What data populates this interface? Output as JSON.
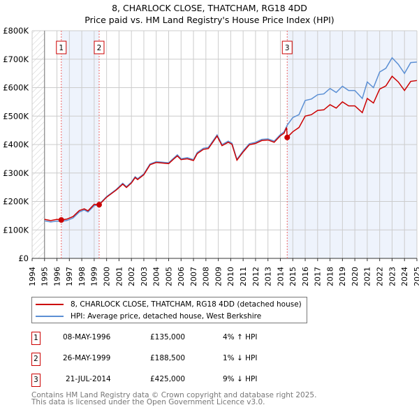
{
  "chart_data": {
    "type": "line",
    "title": "8, CHARLOCK CLOSE, THATCHAM, RG18 4DD",
    "subtitle": "Price paid vs. HM Land Registry's House Price Index (HPI)",
    "xlim": [
      1994,
      2025
    ],
    "ylim": [
      0,
      800000
    ],
    "x_ticks": [
      "1994",
      "1995",
      "1996",
      "1997",
      "1998",
      "1999",
      "2000",
      "2001",
      "2002",
      "2003",
      "2004",
      "2005",
      "2006",
      "2007",
      "2008",
      "2009",
      "2010",
      "2011",
      "2012",
      "2013",
      "2014",
      "2015",
      "2016",
      "2017",
      "2018",
      "2019",
      "2020",
      "2021",
      "2022",
      "2023",
      "2024",
      "2025"
    ],
    "y_ticks": [
      {
        "v": 0,
        "label": "£0"
      },
      {
        "v": 100000,
        "label": "£100K"
      },
      {
        "v": 200000,
        "label": "£200K"
      },
      {
        "v": 300000,
        "label": "£300K"
      },
      {
        "v": 400000,
        "label": "£400K"
      },
      {
        "v": 500000,
        "label": "£500K"
      },
      {
        "v": 600000,
        "label": "£600K"
      },
      {
        "v": 700000,
        "label": "£700K"
      },
      {
        "v": 800000,
        "label": "£800K"
      }
    ],
    "grid": true,
    "series": [
      {
        "name": "8, CHARLOCK CLOSE, THATCHAM, RG18 4DD (detached house)",
        "color": "#cc0000",
        "points": [
          [
            1995,
            137
          ],
          [
            1995.5,
            133
          ],
          [
            1996,
            137
          ],
          [
            1996.35,
            135
          ],
          [
            1996.8,
            138
          ],
          [
            1997.3,
            147
          ],
          [
            1997.8,
            168
          ],
          [
            1998.2,
            174
          ],
          [
            1998.5,
            167
          ],
          [
            1999,
            190
          ],
          [
            1999.4,
            188.5
          ],
          [
            2000,
            215
          ],
          [
            2000.8,
            241
          ],
          [
            2001.3,
            261
          ],
          [
            2001.6,
            249
          ],
          [
            2002,
            265
          ],
          [
            2002.3,
            284
          ],
          [
            2002.5,
            277
          ],
          [
            2003,
            294
          ],
          [
            2003.5,
            329
          ],
          [
            2004,
            337
          ],
          [
            2005,
            333
          ],
          [
            2005.4,
            349
          ],
          [
            2005.7,
            360
          ],
          [
            2006,
            347
          ],
          [
            2006.5,
            350
          ],
          [
            2007,
            344
          ],
          [
            2007.3,
            368
          ],
          [
            2007.8,
            383
          ],
          [
            2008.2,
            386
          ],
          [
            2008.9,
            430
          ],
          [
            2009.3,
            396
          ],
          [
            2009.8,
            408
          ],
          [
            2010.1,
            401
          ],
          [
            2010.5,
            345
          ],
          [
            2011,
            374
          ],
          [
            2011.5,
            399
          ],
          [
            2012,
            404
          ],
          [
            2012.5,
            414
          ],
          [
            2013,
            416
          ],
          [
            2013.5,
            408
          ],
          [
            2014,
            431
          ],
          [
            2014.3,
            440
          ],
          [
            2014.5,
            460
          ],
          [
            2014.55,
            425
          ],
          [
            2015,
            445
          ],
          [
            2015.5,
            460
          ],
          [
            2016,
            500
          ],
          [
            2016.5,
            505
          ],
          [
            2017,
            520
          ],
          [
            2017.5,
            522
          ],
          [
            2018,
            540
          ],
          [
            2018.5,
            528
          ],
          [
            2019,
            550
          ],
          [
            2019.5,
            536
          ],
          [
            2020,
            536
          ],
          [
            2020.6,
            512
          ],
          [
            2021,
            562
          ],
          [
            2021.5,
            546
          ],
          [
            2022,
            595
          ],
          [
            2022.5,
            606
          ],
          [
            2023,
            640
          ],
          [
            2023.5,
            620
          ],
          [
            2024,
            590
          ],
          [
            2024.5,
            622
          ],
          [
            2025,
            625
          ]
        ]
      },
      {
        "name": "HPI: Average price, detached house, West Berkshire",
        "color": "#5b8fd4",
        "points": [
          [
            1995,
            132
          ],
          [
            1995.5,
            128
          ],
          [
            1996,
            131
          ],
          [
            1996.35,
            130
          ],
          [
            1996.8,
            133
          ],
          [
            1997.3,
            142
          ],
          [
            1997.8,
            163
          ],
          [
            1998.2,
            170
          ],
          [
            1998.5,
            163
          ],
          [
            1999,
            185
          ],
          [
            1999.4,
            190
          ],
          [
            2000,
            217
          ],
          [
            2000.8,
            243
          ],
          [
            2001.3,
            264
          ],
          [
            2001.6,
            252
          ],
          [
            2002,
            268
          ],
          [
            2002.3,
            287
          ],
          [
            2002.5,
            280
          ],
          [
            2003,
            297
          ],
          [
            2003.5,
            332
          ],
          [
            2004,
            340
          ],
          [
            2005,
            336
          ],
          [
            2005.4,
            352
          ],
          [
            2005.7,
            364
          ],
          [
            2006,
            350
          ],
          [
            2006.5,
            354
          ],
          [
            2007,
            347
          ],
          [
            2007.3,
            372
          ],
          [
            2007.8,
            387
          ],
          [
            2008.2,
            390
          ],
          [
            2008.9,
            434
          ],
          [
            2009.3,
            400
          ],
          [
            2009.8,
            412
          ],
          [
            2010.1,
            405
          ],
          [
            2010.5,
            348
          ],
          [
            2011,
            378
          ],
          [
            2011.5,
            403
          ],
          [
            2012,
            408
          ],
          [
            2012.5,
            418
          ],
          [
            2013,
            420
          ],
          [
            2013.5,
            412
          ],
          [
            2014,
            435
          ],
          [
            2014.3,
            445
          ],
          [
            2014.55,
            468
          ],
          [
            2015,
            495
          ],
          [
            2015.5,
            505
          ],
          [
            2016,
            555
          ],
          [
            2016.5,
            560
          ],
          [
            2017,
            575
          ],
          [
            2017.5,
            578
          ],
          [
            2018,
            597
          ],
          [
            2018.5,
            583
          ],
          [
            2019,
            605
          ],
          [
            2019.5,
            590
          ],
          [
            2020,
            590
          ],
          [
            2020.6,
            562
          ],
          [
            2021,
            620
          ],
          [
            2021.5,
            600
          ],
          [
            2022,
            655
          ],
          [
            2022.5,
            668
          ],
          [
            2023,
            705
          ],
          [
            2023.5,
            682
          ],
          [
            2024,
            650
          ],
          [
            2024.5,
            688
          ],
          [
            2025,
            690
          ]
        ]
      }
    ],
    "sales": [
      {
        "id": "1",
        "x": 1996.35,
        "price": 135000
      },
      {
        "id": "2",
        "x": 1999.4,
        "price": 188500
      },
      {
        "id": "3",
        "x": 2014.55,
        "price": 425000
      }
    ],
    "legend_placement": "below"
  },
  "legend": {
    "property": "8, CHARLOCK CLOSE, THATCHAM, RG18 4DD (detached house)",
    "hpi": "HPI: Average price, detached house, West Berkshire"
  },
  "transactions": [
    {
      "id": "1",
      "date": "08-MAY-1996",
      "price": "£135,000",
      "hpi": "4% ↑ HPI"
    },
    {
      "id": "2",
      "date": "26-MAY-1999",
      "price": "£188,500",
      "hpi": "1% ↓ HPI"
    },
    {
      "id": "3",
      "date": "21-JUL-2014",
      "price": "£425,000",
      "hpi": "9% ↓ HPI"
    }
  ],
  "footer": {
    "line1": "Contains HM Land Registry data © Crown copyright and database right 2025.",
    "line2": "This data is licensed under the Open Government Licence v3.0."
  },
  "colors": {
    "property": "#cc0000",
    "hpi": "#5b8fd4",
    "shade": "#eef3fc"
  }
}
